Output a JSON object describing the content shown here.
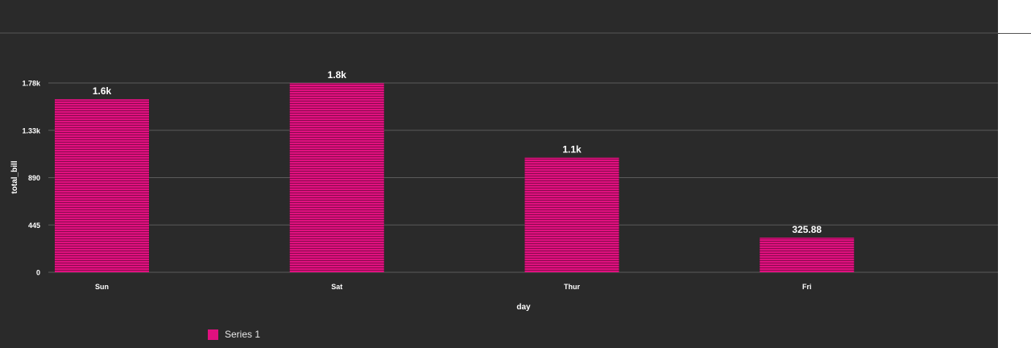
{
  "chart_data": {
    "type": "bar",
    "categories": [
      "Sun",
      "Sat",
      "Thur",
      "Fri"
    ],
    "series": [
      {
        "name": "Series 1",
        "values": [
          1627.16,
          1778.4,
          1077.55,
          325.88
        ]
      }
    ],
    "data_labels": [
      "1.6k",
      "1.8k",
      "1.1k",
      "325.88"
    ],
    "xlabel": "day",
    "ylabel": "total_bill",
    "yticks": [
      0,
      445,
      890,
      1335,
      1780
    ],
    "ytick_labels": [
      "0",
      "445",
      "890",
      "1.33k",
      "1.78k"
    ],
    "ylim": [
      0,
      1780
    ],
    "grid": true,
    "legend_placement": "bottom-left",
    "colors": {
      "bar": "#e0107f",
      "bar_stripe": "#8a0a4e",
      "background": "#2a2a2a",
      "grid": "#5a5a5a",
      "text": "#ffffff"
    }
  }
}
